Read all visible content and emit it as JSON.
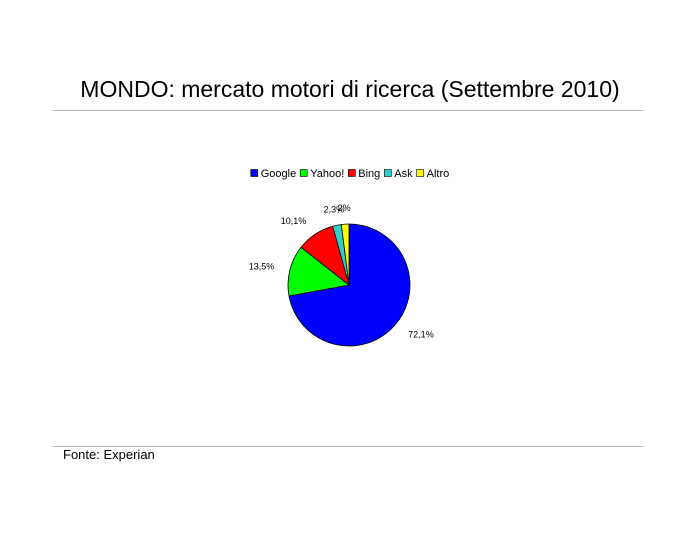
{
  "page": {
    "title": "MONDO: mercato motori di ricerca (Settembre 2010)",
    "source": "Fonte: Experian"
  },
  "chart_data": {
    "type": "pie",
    "title": "MONDO: mercato motori di ricerca (Settembre 2010)",
    "legend_position": "top",
    "slices": [
      {
        "name": "Google",
        "value": 72.1,
        "label": "72,1%",
        "color": "#0000FF"
      },
      {
        "name": "Yahoo!",
        "value": 13.5,
        "label": "13,5%",
        "color": "#00FF00"
      },
      {
        "name": "Bing",
        "value": 10.1,
        "label": "10,1%",
        "color": "#FF0000"
      },
      {
        "name": "Ask",
        "value": 2.3,
        "label": "2,3%",
        "color": "#33CCCC"
      },
      {
        "name": "Altro",
        "value": 2.0,
        "label": "2%",
        "color": "#FFFF00"
      }
    ]
  }
}
